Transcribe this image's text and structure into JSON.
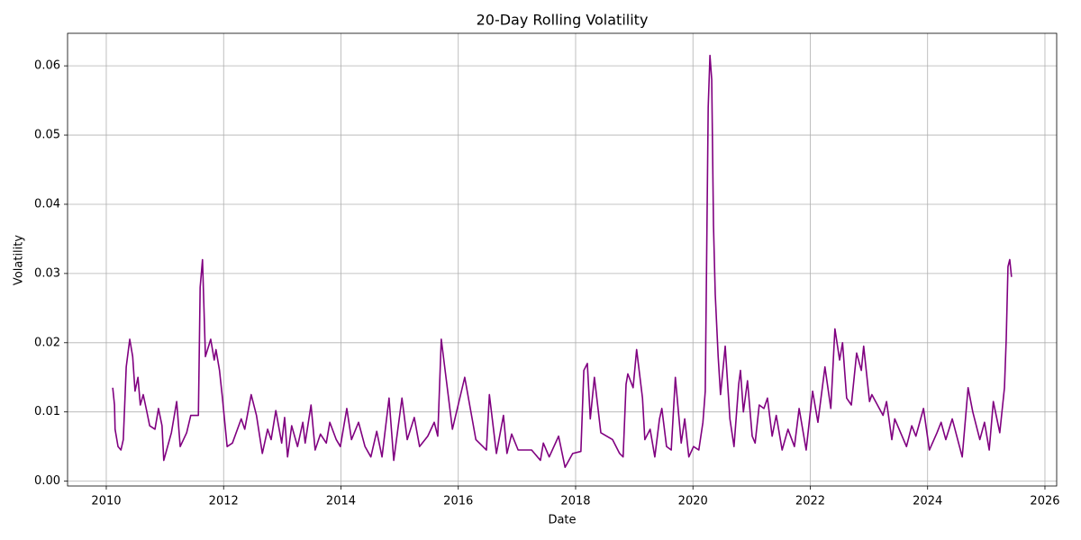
{
  "chart_data": {
    "type": "line",
    "title": "20-Day Rolling Volatility",
    "x_label": "Date",
    "y_label": "Volatility",
    "x": [
      2010.11,
      2010.14,
      2010.15,
      2010.2,
      2010.25,
      2010.29,
      2010.34,
      2010.4,
      2010.45,
      2010.49,
      2010.54,
      2010.58,
      2010.63,
      2010.68,
      2010.74,
      2010.83,
      2010.89,
      2010.95,
      2010.98,
      2011.11,
      2011.2,
      2011.26,
      2011.37,
      2011.44,
      2011.57,
      2011.6,
      2011.64,
      2011.69,
      2011.78,
      2011.84,
      2011.87,
      2011.93,
      2011.98,
      2012.06,
      2012.15,
      2012.3,
      2012.36,
      2012.47,
      2012.56,
      2012.66,
      2012.75,
      2012.81,
      2012.89,
      2012.99,
      2013.04,
      2013.09,
      2013.16,
      2013.26,
      2013.35,
      2013.39,
      2013.49,
      2013.56,
      2013.65,
      2013.75,
      2013.81,
      2013.92,
      2013.99,
      2014.1,
      2014.18,
      2014.3,
      2014.41,
      2014.51,
      2014.61,
      2014.7,
      2014.82,
      2014.9,
      2015.04,
      2015.13,
      2015.25,
      2015.34,
      2015.48,
      2015.59,
      2015.65,
      2015.71,
      2015.9,
      2016.11,
      2016.3,
      2016.48,
      2016.53,
      2016.65,
      2016.77,
      2016.83,
      2016.91,
      2017.02,
      2017.25,
      2017.4,
      2017.45,
      2017.55,
      2017.71,
      2017.82,
      2017.95,
      2018.09,
      2018.14,
      2018.2,
      2018.25,
      2018.32,
      2018.43,
      2018.63,
      2018.75,
      2018.81,
      2018.86,
      2018.89,
      2018.98,
      2019.04,
      2019.14,
      2019.18,
      2019.27,
      2019.35,
      2019.43,
      2019.47,
      2019.55,
      2019.63,
      2019.7,
      2019.8,
      2019.86,
      2019.93,
      2020.01,
      2020.1,
      2020.17,
      2020.21,
      2020.26,
      2020.29,
      2020.32,
      2020.35,
      2020.38,
      2020.43,
      2020.47,
      2020.55,
      2020.63,
      2020.7,
      2020.78,
      2020.81,
      2020.86,
      2020.93,
      2021.01,
      2021.06,
      2021.13,
      2021.21,
      2021.27,
      2021.35,
      2021.42,
      2021.52,
      2021.62,
      2021.73,
      2021.81,
      2021.93,
      2022.04,
      2022.13,
      2022.25,
      2022.35,
      2022.42,
      2022.5,
      2022.55,
      2022.62,
      2022.7,
      2022.79,
      2022.87,
      2022.91,
      2023.01,
      2023.05,
      2023.24,
      2023.3,
      2023.39,
      2023.44,
      2023.64,
      2023.73,
      2023.8,
      2023.93,
      2024.03,
      2024.16,
      2024.23,
      2024.31,
      2024.42,
      2024.59,
      2024.69,
      2024.77,
      2024.89,
      2024.97,
      2025.05,
      2025.12,
      2025.23,
      2025.31,
      2025.34,
      2025.37,
      2025.4,
      2025.43
    ],
    "series": [
      {
        "name": "Volatility",
        "color": "#800080",
        "values": [
          0.0135,
          0.011,
          0.0075,
          0.005,
          0.0045,
          0.006,
          0.0165,
          0.0205,
          0.018,
          0.013,
          0.015,
          0.011,
          0.0125,
          0.0105,
          0.008,
          0.0075,
          0.0105,
          0.008,
          0.003,
          0.007,
          0.0115,
          0.005,
          0.007,
          0.0095,
          0.0095,
          0.028,
          0.032,
          0.018,
          0.0205,
          0.0175,
          0.019,
          0.016,
          0.012,
          0.005,
          0.0055,
          0.009,
          0.0075,
          0.0125,
          0.0095,
          0.004,
          0.0075,
          0.006,
          0.0102,
          0.0055,
          0.0092,
          0.0035,
          0.008,
          0.005,
          0.0085,
          0.0055,
          0.011,
          0.0045,
          0.0068,
          0.0055,
          0.0085,
          0.006,
          0.005,
          0.0105,
          0.006,
          0.0085,
          0.005,
          0.0035,
          0.0072,
          0.0035,
          0.012,
          0.003,
          0.012,
          0.006,
          0.0092,
          0.005,
          0.0065,
          0.0085,
          0.0065,
          0.0205,
          0.0075,
          0.015,
          0.006,
          0.0045,
          0.0125,
          0.004,
          0.0095,
          0.004,
          0.0068,
          0.0045,
          0.0045,
          0.003,
          0.0055,
          0.0035,
          0.0065,
          0.002,
          0.004,
          0.0043,
          0.016,
          0.017,
          0.009,
          0.015,
          0.007,
          0.006,
          0.004,
          0.0035,
          0.014,
          0.0155,
          0.0135,
          0.019,
          0.012,
          0.006,
          0.0075,
          0.0035,
          0.009,
          0.0105,
          0.005,
          0.0045,
          0.015,
          0.0055,
          0.009,
          0.0035,
          0.005,
          0.0045,
          0.0085,
          0.013,
          0.054,
          0.0615,
          0.058,
          0.037,
          0.027,
          0.018,
          0.0125,
          0.0195,
          0.009,
          0.005,
          0.014,
          0.016,
          0.01,
          0.0145,
          0.0065,
          0.0055,
          0.011,
          0.0105,
          0.012,
          0.0065,
          0.0095,
          0.0045,
          0.0075,
          0.005,
          0.0105,
          0.0045,
          0.013,
          0.0085,
          0.0165,
          0.0105,
          0.022,
          0.0175,
          0.02,
          0.012,
          0.011,
          0.0185,
          0.016,
          0.0195,
          0.0115,
          0.0125,
          0.0095,
          0.0115,
          0.006,
          0.009,
          0.005,
          0.008,
          0.0065,
          0.0105,
          0.0045,
          0.007,
          0.0085,
          0.006,
          0.009,
          0.0035,
          0.0135,
          0.01,
          0.006,
          0.0085,
          0.0045,
          0.0115,
          0.007,
          0.0135,
          0.0205,
          0.031,
          0.032,
          0.0295
        ]
      }
    ],
    "xlim": [
      2009.34,
      2026.2
    ],
    "xticks": [
      2010,
      2012,
      2014,
      2016,
      2018,
      2020,
      2022,
      2024,
      2026
    ],
    "ylim": [
      -0.0007,
      0.0647
    ],
    "yticks": [
      {
        "value": 0,
        "label": "0.00"
      },
      0.01,
      0.02,
      0.03,
      0.04,
      0.05,
      0.06
    ],
    "grid": true
  }
}
